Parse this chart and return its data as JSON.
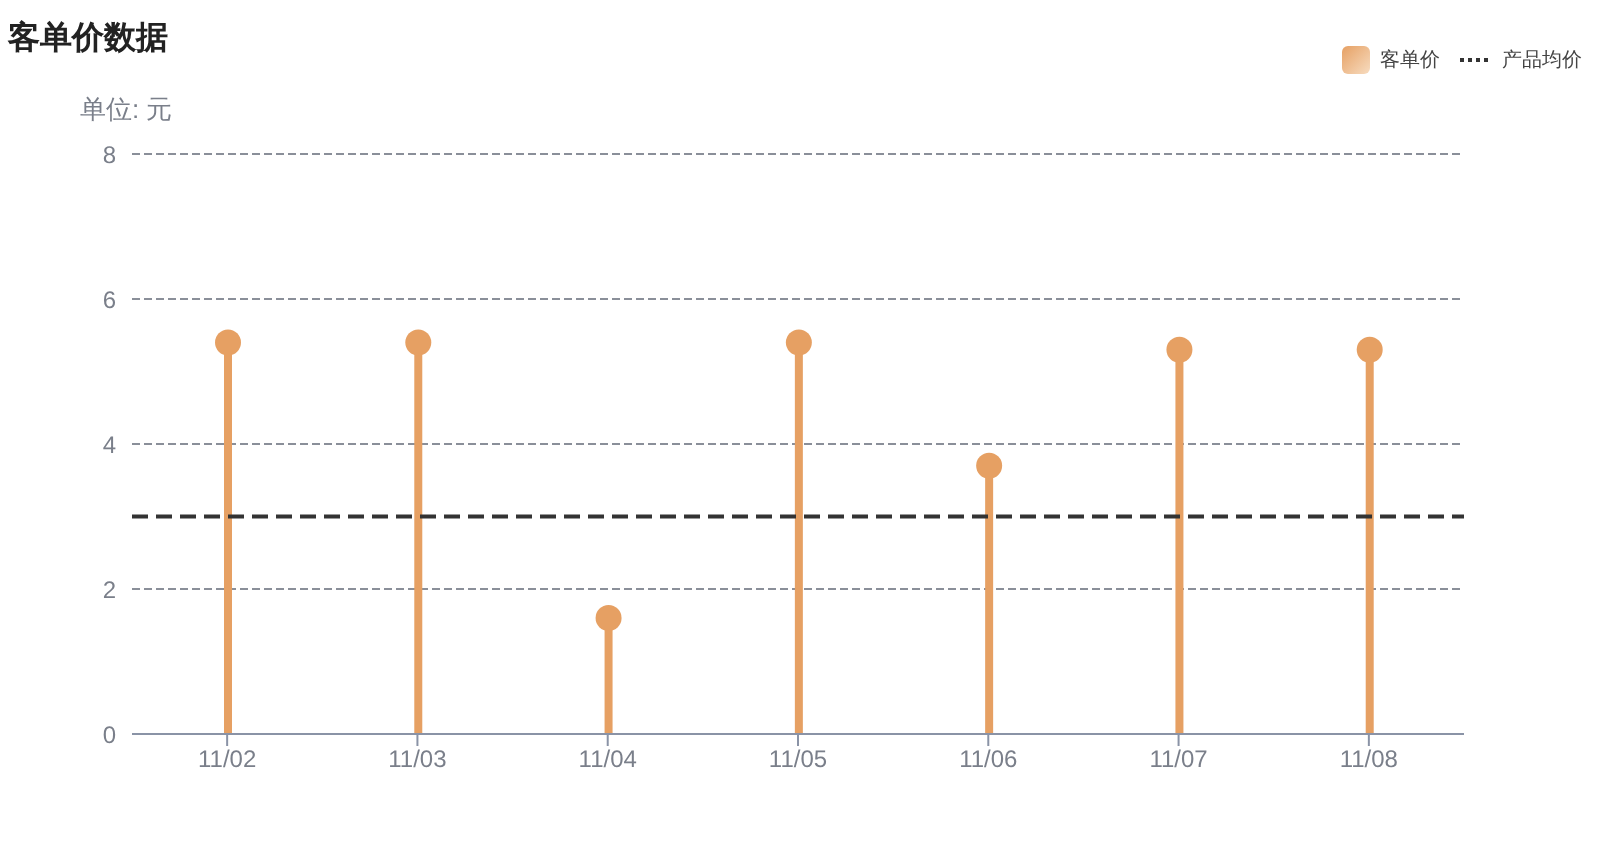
{
  "chart_data": {
    "type": "lollipop",
    "title": "客单价数据",
    "ylabel": "单位: 元",
    "categories": [
      "11/02",
      "11/03",
      "11/04",
      "11/05",
      "11/06",
      "11/07",
      "11/08"
    ],
    "series": [
      {
        "name": "客单价",
        "color": "#e6a063",
        "values": [
          5.4,
          5.4,
          1.6,
          5.4,
          3.7,
          5.3,
          5.3
        ]
      }
    ],
    "ylim": [
      0,
      8
    ],
    "yticks": [
      0,
      2,
      4,
      6,
      8
    ],
    "grid": "y",
    "legend": "top right",
    "marker": "circle",
    "ref_lines": [
      {
        "axis": "y",
        "value": 3,
        "label": "产品均价",
        "color": "#333333",
        "line_style": "dashed"
      }
    ]
  }
}
